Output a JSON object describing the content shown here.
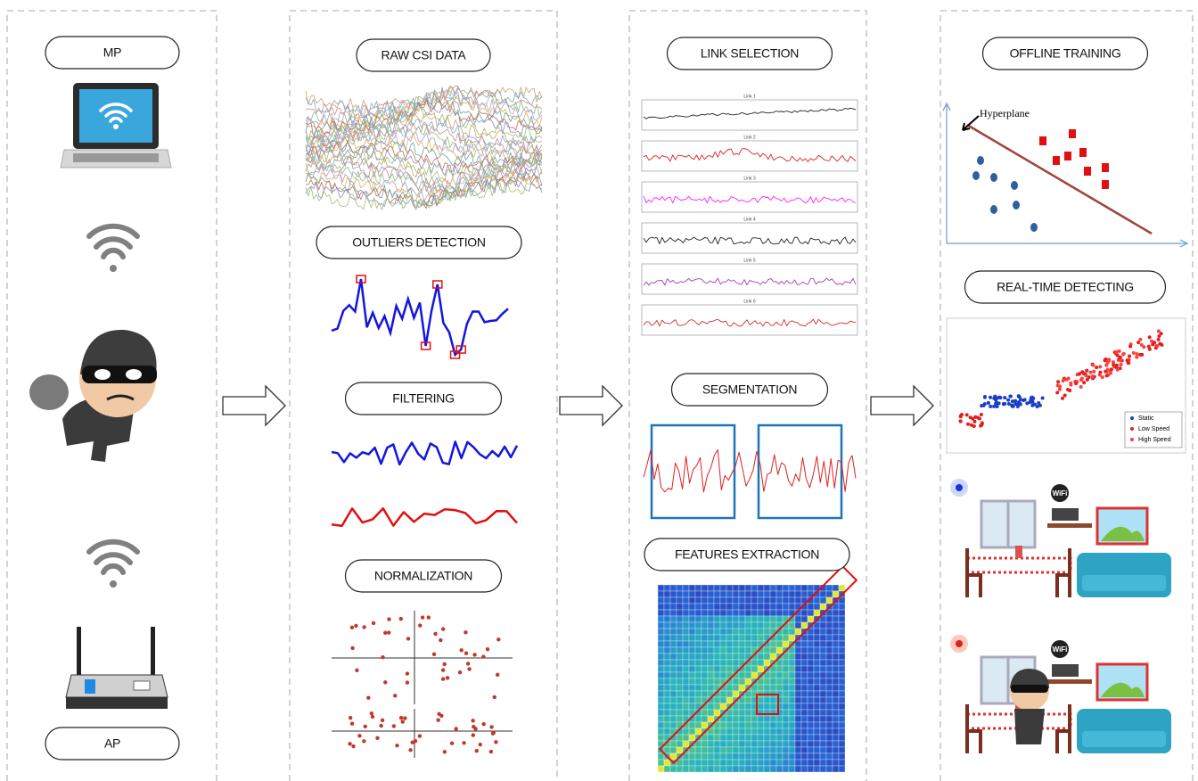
{
  "panels": [
    {
      "steps": [
        "MP",
        "AP"
      ]
    },
    {
      "steps": [
        "RAW CSI DATA",
        "OUTLIERS DETECTION",
        "FILTERING",
        "NORMALIZATION"
      ]
    },
    {
      "steps": [
        "LINK SELECTION",
        "SEGMENTATION",
        "FEATURES EXTRACTION"
      ]
    },
    {
      "steps": [
        "OFFLINE TRAINING",
        "REAL-TIME DETECTING"
      ]
    }
  ],
  "link_plots": {
    "titles": [
      "Link 1",
      "Link 2",
      "Link 3",
      "Link 4",
      "Link 5",
      "Link 6"
    ]
  },
  "svm_plot": {
    "annotation": "Hyperplane"
  },
  "detection_plot": {
    "legend": [
      "Static",
      "Low Speed",
      "High Speed"
    ]
  },
  "room_scene": {
    "router_label": "WiFi"
  }
}
